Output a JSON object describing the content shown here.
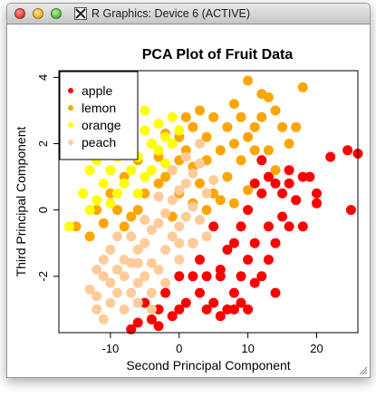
{
  "window": {
    "title": "R Graphics: Device 6 (ACTIVE)"
  },
  "icons": {
    "close": "close-button-red",
    "minimize": "minimize-button-yellow",
    "zoom": "zoom-button-green",
    "app": "x11-icon",
    "grip": "resize-grip-icon"
  },
  "chart_data": {
    "type": "scatter",
    "title": "PCA Plot of Fruit Data",
    "xlabel": "Second Principal Component",
    "ylabel": "Third Principal Component",
    "xlim": [
      -17.5,
      26
    ],
    "ylim": [
      -3.7,
      4.2
    ],
    "xticks": [
      -10,
      0,
      10,
      20
    ],
    "yticks": [
      -2,
      0,
      2,
      4
    ],
    "grid": false,
    "legend_position": "top-left",
    "series": [
      {
        "name": "apple",
        "color": "#ff0000",
        "points": [
          [
            24.5,
            1.8
          ],
          [
            26,
            1.7
          ],
          [
            25,
            0
          ],
          [
            19,
            1
          ],
          [
            20,
            0.5
          ],
          [
            20,
            0.2
          ],
          [
            18,
            1
          ],
          [
            22,
            1.6
          ],
          [
            16,
            1.2
          ],
          [
            15,
            -0.2
          ],
          [
            14,
            0.8
          ],
          [
            13,
            -0.5
          ],
          [
            12,
            0.5
          ],
          [
            11,
            -1
          ],
          [
            10,
            -1.5
          ],
          [
            9,
            -2
          ],
          [
            8,
            -2.5
          ],
          [
            7,
            -3
          ],
          [
            6,
            -3.2
          ],
          [
            5,
            -2.8
          ],
          [
            4,
            -3
          ],
          [
            3,
            -2.5
          ],
          [
            2,
            -2
          ],
          [
            1,
            -2.8
          ],
          [
            0,
            -3
          ],
          [
            -1,
            -3.2
          ],
          [
            -3,
            -3.5
          ],
          [
            -4,
            -3.3
          ],
          [
            -6,
            -3.4
          ],
          [
            -7,
            -3.6
          ],
          [
            -5,
            -2.8
          ],
          [
            12,
            -2
          ],
          [
            14,
            -1
          ],
          [
            16,
            -0.5
          ],
          [
            17,
            0.3
          ],
          [
            18,
            -0.5
          ],
          [
            15,
            0.5
          ],
          [
            13,
            1
          ],
          [
            10,
            0
          ],
          [
            8,
            -1
          ],
          [
            6,
            -1.8
          ],
          [
            4,
            -2
          ],
          [
            2,
            -1
          ],
          [
            0,
            -2
          ],
          [
            -2,
            -2.5
          ],
          [
            -3,
            -3
          ],
          [
            9,
            -0.5
          ],
          [
            11,
            0.8
          ],
          [
            14,
            -2.5
          ],
          [
            10,
            -3
          ],
          [
            7,
            -1.2
          ],
          [
            5,
            -0.5
          ],
          [
            3,
            -1.5
          ],
          [
            12,
            1.5
          ],
          [
            16,
            0.8
          ],
          [
            13,
            -1.5
          ],
          [
            11,
            -2.2
          ],
          [
            8,
            -3
          ],
          [
            6,
            -2
          ],
          [
            9,
            -2.8
          ]
        ]
      },
      {
        "name": "lemon",
        "color": "#ffa500",
        "points": [
          [
            10,
            3.9
          ],
          [
            18,
            3.7
          ],
          [
            12,
            3.5
          ],
          [
            14,
            3
          ],
          [
            9,
            2.8
          ],
          [
            8,
            3.2
          ],
          [
            7,
            2.5
          ],
          [
            5,
            2.8
          ],
          [
            4,
            2.2
          ],
          [
            2,
            2.5
          ],
          [
            1,
            1.8
          ],
          [
            0,
            1.5
          ],
          [
            -1,
            1.2
          ],
          [
            -2,
            1
          ],
          [
            -3,
            0.8
          ],
          [
            -5,
            0.5
          ],
          [
            -6,
            0
          ],
          [
            -7,
            -0.2
          ],
          [
            -8,
            -0.5
          ],
          [
            -9,
            0
          ],
          [
            -11,
            -0.4
          ],
          [
            -13,
            -0.8
          ],
          [
            -15,
            -0.5
          ],
          [
            -12,
            0
          ],
          [
            -10,
            0.5
          ],
          [
            -8,
            1
          ],
          [
            -6,
            1.5
          ],
          [
            -4,
            2
          ],
          [
            -2,
            2.3
          ],
          [
            0,
            2.2
          ],
          [
            2,
            1.3
          ],
          [
            3,
            0.8
          ],
          [
            4,
            1.5
          ],
          [
            5,
            0.5
          ],
          [
            6,
            1.8
          ],
          [
            7,
            1
          ],
          [
            8,
            0.2
          ],
          [
            9,
            1.5
          ],
          [
            10,
            2.2
          ],
          [
            11,
            1.8
          ],
          [
            12,
            2.8
          ],
          [
            13,
            1.8
          ],
          [
            14,
            1.2
          ],
          [
            15,
            2.5
          ],
          [
            16,
            2
          ],
          [
            10,
            0.6
          ],
          [
            8,
            2
          ],
          [
            6,
            0.3
          ],
          [
            4,
            0
          ],
          [
            2,
            0.2
          ],
          [
            0,
            0.5
          ],
          [
            -3,
            1.6
          ],
          [
            -1,
            -0.2
          ],
          [
            1,
            2.8
          ],
          [
            3,
            3
          ],
          [
            13,
            3.4
          ],
          [
            17,
            2.5
          ],
          [
            11,
            2.5
          ]
        ]
      },
      {
        "name": "orange",
        "color": "#ffff00",
        "points": [
          [
            -16,
            -0.5
          ],
          [
            -14,
            0.5
          ],
          [
            -13,
            1.2
          ],
          [
            -12,
            1.5
          ],
          [
            -11,
            0.8
          ],
          [
            -10,
            1.2
          ],
          [
            -9,
            1.6
          ],
          [
            -8,
            2.2
          ],
          [
            -7,
            2
          ],
          [
            -6,
            1.6
          ],
          [
            -5,
            2.4
          ],
          [
            -4,
            2
          ],
          [
            -3,
            2.6
          ],
          [
            -2,
            2.2
          ],
          [
            -1,
            2.8
          ],
          [
            0,
            2.4
          ],
          [
            -12,
            0.3
          ],
          [
            -10,
            0.2
          ],
          [
            -8,
            0.8
          ],
          [
            -6,
            0.5
          ],
          [
            -4,
            1.2
          ],
          [
            -2,
            1.4
          ],
          [
            -11,
            2
          ],
          [
            -9,
            2.5
          ],
          [
            -7,
            2.8
          ],
          [
            -5,
            1
          ],
          [
            -3,
            1.8
          ],
          [
            -1,
            2
          ],
          [
            -13,
            0
          ],
          [
            -7,
            1.2
          ],
          [
            -5,
            3
          ],
          [
            -9,
            0.5
          ]
        ]
      },
      {
        "name": "peach",
        "color": "#ffcc99",
        "points": [
          [
            -13,
            -2.4
          ],
          [
            -12,
            -3
          ],
          [
            -11,
            -3.3
          ],
          [
            -10,
            -2.8
          ],
          [
            -9,
            -2.5
          ],
          [
            -8,
            -2
          ],
          [
            -7,
            -1.6
          ],
          [
            -6,
            -1.2
          ],
          [
            -5,
            -1
          ],
          [
            -4,
            -0.6
          ],
          [
            -3,
            -0.4
          ],
          [
            -2,
            -0.1
          ],
          [
            -1,
            0.3
          ],
          [
            0,
            0.6
          ],
          [
            1,
            0.8
          ],
          [
            2,
            1.1
          ],
          [
            3,
            1.4
          ],
          [
            4,
            0.5
          ],
          [
            5,
            0.9
          ],
          [
            -12,
            -1.8
          ],
          [
            -11,
            -1.5
          ],
          [
            -10,
            -1.2
          ],
          [
            -9,
            -0.8
          ],
          [
            -8,
            -1.5
          ],
          [
            -7,
            -2.5
          ],
          [
            -6,
            -2.2
          ],
          [
            -5,
            -2
          ],
          [
            -4,
            -1.6
          ],
          [
            -3,
            -1.8
          ],
          [
            -2,
            -1.2
          ],
          [
            -1,
            -0.8
          ],
          [
            0,
            -0.5
          ],
          [
            1,
            -0.2
          ],
          [
            2,
            0.1
          ],
          [
            3,
            -0.3
          ],
          [
            -10,
            -2.2
          ],
          [
            -8,
            -3
          ],
          [
            -6,
            -2.8
          ],
          [
            -4,
            -2.5
          ],
          [
            -2,
            -2.2
          ],
          [
            0,
            -1.5
          ],
          [
            2,
            -1
          ],
          [
            4,
            -0.8
          ],
          [
            -12,
            -2.6
          ],
          [
            -9,
            -1.8
          ],
          [
            -5,
            -0.3
          ],
          [
            -3,
            0.4
          ],
          [
            -1,
            1.2
          ],
          [
            1,
            1.6
          ],
          [
            3,
            2
          ],
          [
            -7,
            -0.8
          ],
          [
            -11,
            -2
          ],
          [
            -6,
            -1.6
          ],
          [
            0,
            -1
          ],
          [
            -4,
            -3
          ]
        ]
      }
    ]
  }
}
